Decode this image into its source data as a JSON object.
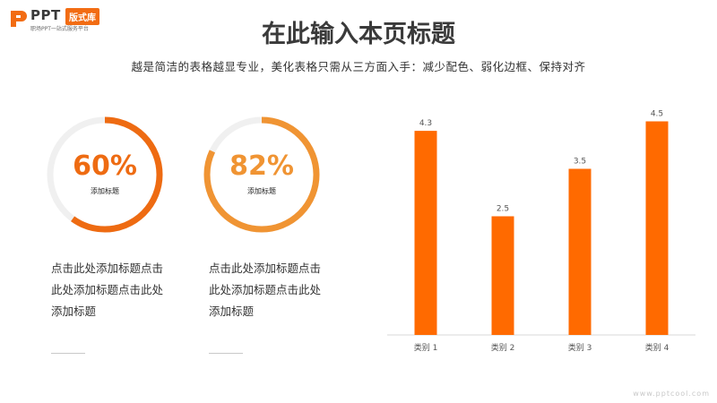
{
  "brand": {
    "name": "PPT",
    "badge": "版式库",
    "tagline": "职场PPT一站式服务平台"
  },
  "title": "在此输入本页标题",
  "subtitle": "越是简洁的表格越显专业，美化表格只需从三方面入手：减少配色、弱化边框、保持对齐",
  "kpis": [
    {
      "value": "60%",
      "percent": 60,
      "label": "添加标题",
      "color": "#ee6b12",
      "description": "点击此处添加标题点击此处添加标题点击此处添加标题"
    },
    {
      "value": "82%",
      "percent": 82,
      "label": "添加标题",
      "color": "#f09433",
      "description": "点击此处添加标题点击此处添加标题点击此处添加标题"
    }
  ],
  "chart_data": {
    "type": "bar",
    "categories": [
      "类别 1",
      "类别 2",
      "类别 3",
      "类别 4"
    ],
    "values": [
      4.3,
      2.5,
      3.5,
      4.5
    ],
    "data_labels": [
      "4.3",
      "2.5",
      "3.5",
      "4.5"
    ],
    "ylim": [
      0,
      5
    ],
    "grid": false,
    "bar_color": "#ff6a00"
  },
  "footer": {
    "watermark": "www.pptcool.com"
  }
}
